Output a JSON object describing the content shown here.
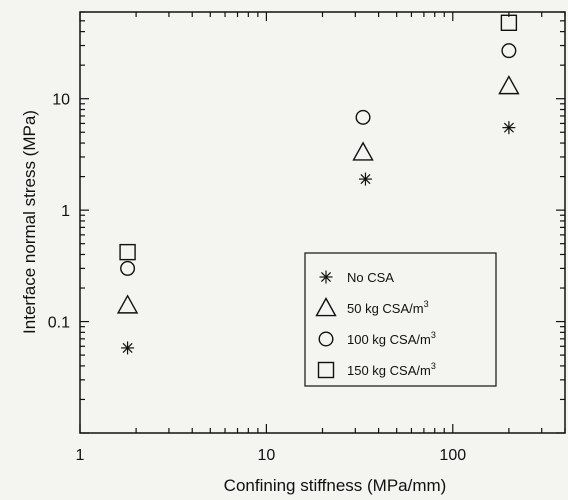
{
  "chart_data": {
    "type": "scatter",
    "xlabel": "Confining stiffness (MPa/mm)",
    "ylabel": "Interface normal stress  (MPa)",
    "x_scale": "log",
    "y_scale": "log",
    "xlim": [
      1,
      400
    ],
    "ylim": [
      0.01,
      60
    ],
    "x_ticks": [
      "1",
      "10",
      "100"
    ],
    "y_ticks": [
      "0.1",
      "1",
      "10"
    ],
    "grid": false,
    "legend_position": "bottom-right",
    "series": [
      {
        "name": "No CSA",
        "unit": "",
        "marker": "asterisk",
        "points": [
          [
            1.8,
            0.058
          ],
          [
            34,
            1.9
          ],
          [
            200,
            5.5
          ]
        ]
      },
      {
        "name": "50 kg CSA/m",
        "unit": "3",
        "marker": "triangle",
        "points": [
          [
            1.8,
            0.14
          ],
          [
            33,
            3.3
          ],
          [
            200,
            13
          ]
        ]
      },
      {
        "name": "100 kg CSA/m",
        "unit": "3",
        "marker": "circle",
        "points": [
          [
            1.8,
            0.3
          ],
          [
            33,
            6.8
          ],
          [
            200,
            27
          ]
        ]
      },
      {
        "name": "150 kg CSA/m",
        "unit": "3",
        "marker": "square",
        "points": [
          [
            1.8,
            0.42
          ],
          [
            200,
            48
          ]
        ]
      }
    ]
  }
}
